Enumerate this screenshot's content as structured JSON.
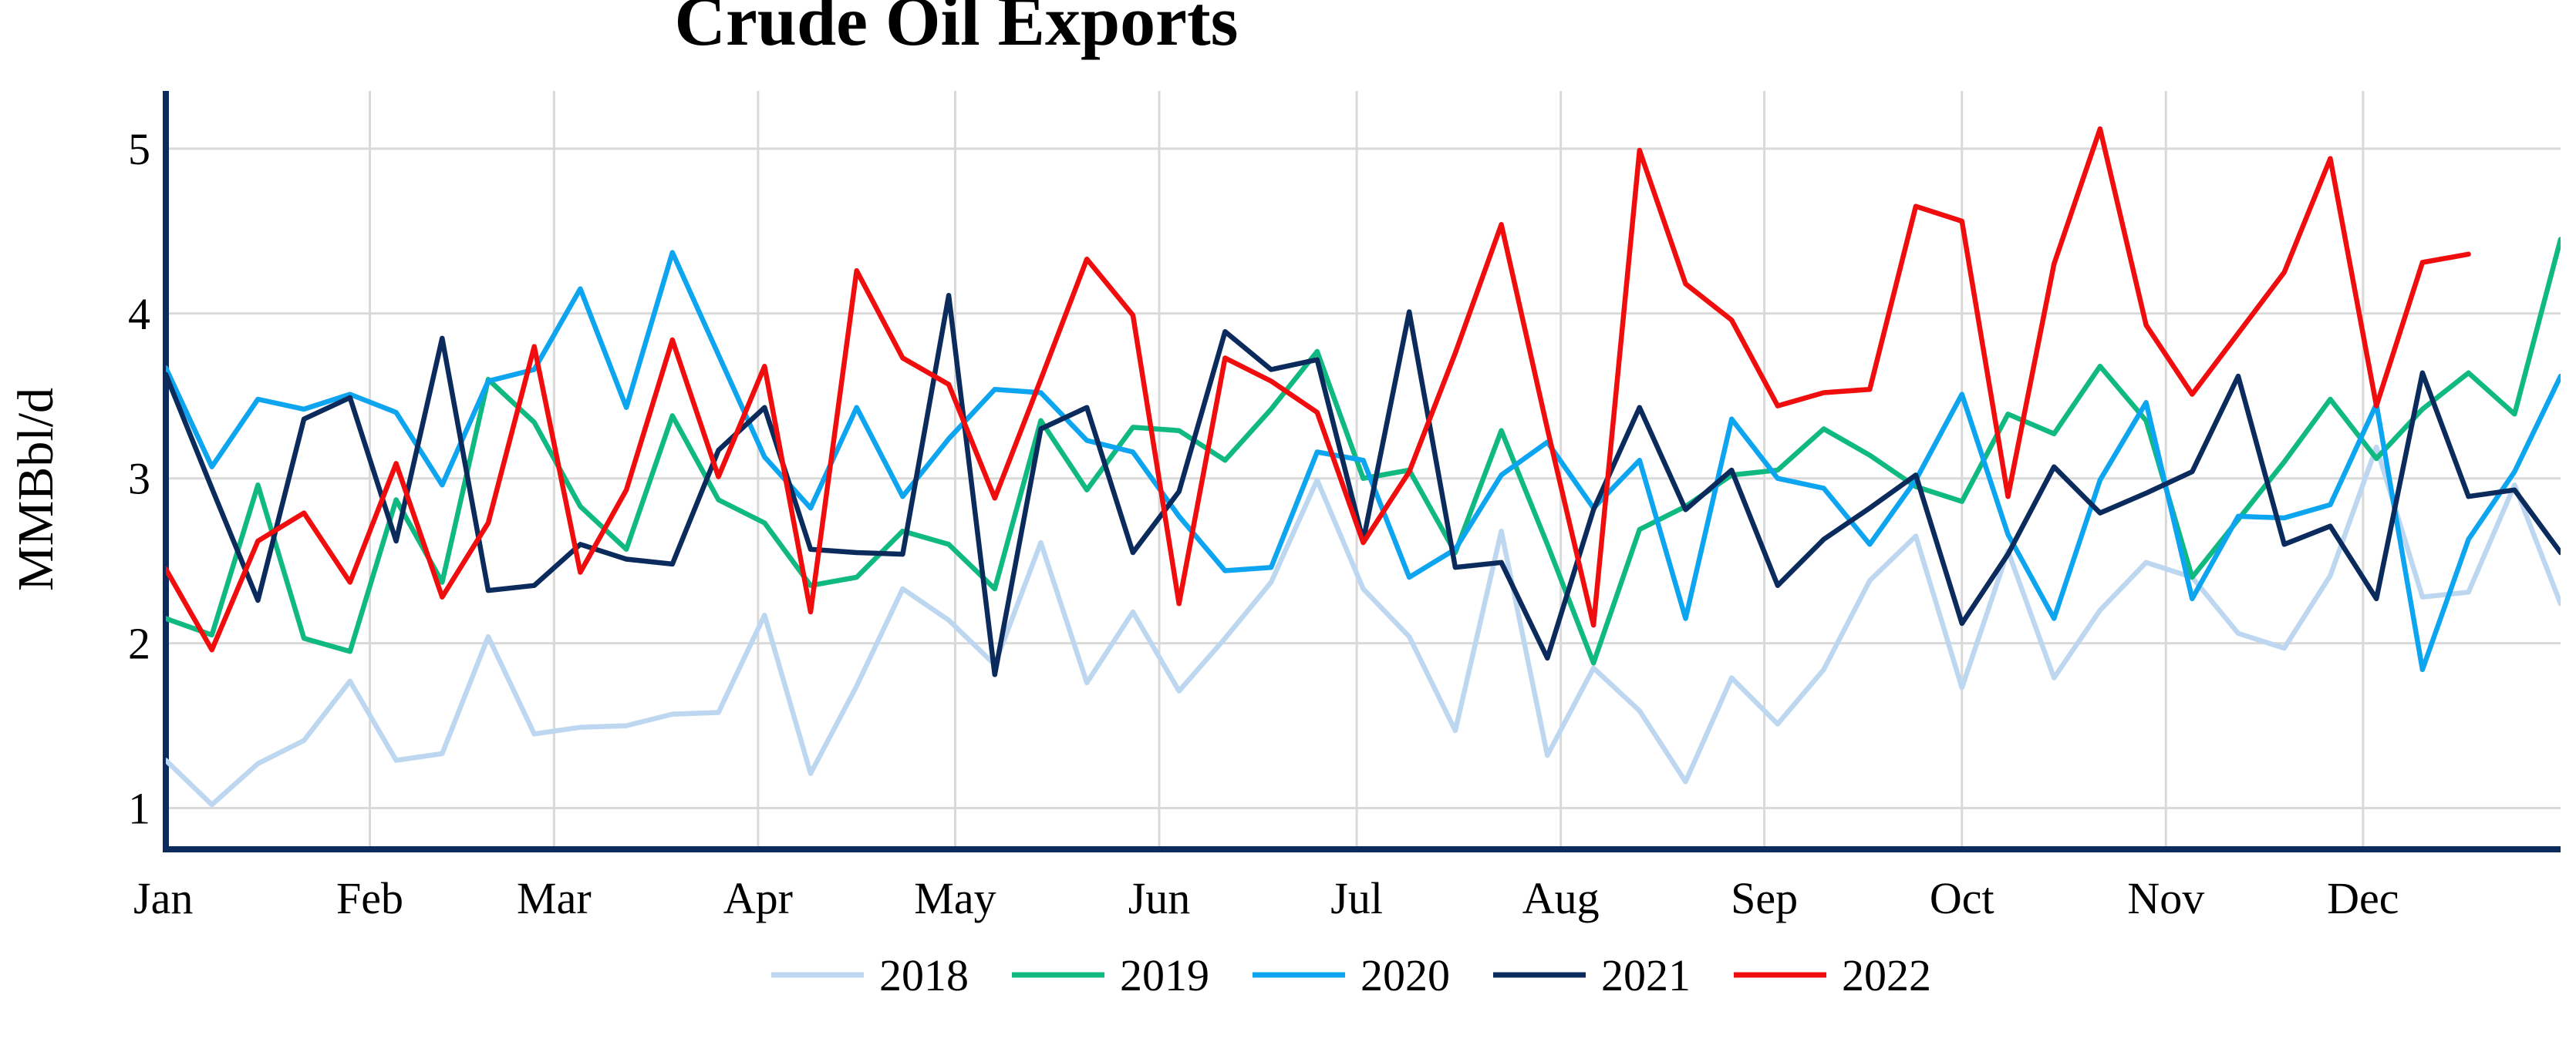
{
  "chart_data": {
    "type": "line",
    "title": "Crude Oil Exports",
    "xlabel": "",
    "ylabel": "MMBbl/d",
    "x_ticks": [
      "Jan",
      "Feb",
      "Mar",
      "Apr",
      "May",
      "Jun",
      "Jul",
      "Aug",
      "Sep",
      "Oct",
      "Nov",
      "Dec"
    ],
    "x_range_weeks": [
      1,
      53
    ],
    "ylim": [
      0.75,
      5.35
    ],
    "y_ticks": [
      1,
      2,
      3,
      4,
      5
    ],
    "grid": true,
    "legend_position": "bottom-center",
    "colors": {
      "2018": "#bdd7f0",
      "2019": "#10b981",
      "2020": "#0ea5f0",
      "2021": "#0b2b5c",
      "2022": "#f00d0d",
      "axis": "#0b2b5c",
      "grid": "#d9d9d9"
    },
    "series": [
      {
        "name": "2018",
        "weeks": [
          1,
          2,
          3,
          4,
          5,
          6,
          7,
          8,
          9,
          10,
          11,
          12,
          13,
          14,
          15,
          16,
          17,
          18,
          19,
          20,
          21,
          22,
          23,
          24,
          25,
          26,
          27,
          28,
          29,
          30,
          31,
          32,
          33,
          34,
          35,
          36,
          37,
          38,
          39,
          40,
          41,
          42,
          43,
          44,
          45,
          46,
          47,
          48,
          49,
          50,
          51,
          52,
          53
        ],
        "values": [
          1.29,
          1.02,
          1.27,
          1.41,
          1.77,
          1.29,
          1.33,
          2.04,
          1.45,
          1.49,
          1.5,
          1.57,
          1.58,
          2.17,
          1.21,
          1.74,
          2.33,
          2.14,
          1.87,
          2.61,
          1.76,
          2.19,
          1.71,
          2.03,
          2.37,
          2.99,
          2.33,
          2.04,
          1.47,
          2.68,
          1.32,
          1.85,
          1.59,
          1.16,
          1.79,
          1.51,
          1.84,
          2.38,
          2.65,
          1.73,
          2.56,
          1.79,
          2.2,
          2.49,
          2.4,
          2.06,
          1.97,
          2.41,
          3.19,
          2.28,
          2.31,
          2.96,
          2.24
        ]
      },
      {
        "name": "2019",
        "weeks": [
          1,
          2,
          3,
          4,
          5,
          6,
          7,
          8,
          9,
          10,
          11,
          12,
          13,
          14,
          15,
          16,
          17,
          18,
          19,
          20,
          21,
          22,
          23,
          24,
          25,
          26,
          27,
          28,
          29,
          30,
          31,
          32,
          33,
          34,
          35,
          36,
          37,
          38,
          39,
          40,
          41,
          42,
          43,
          44,
          45,
          46,
          47,
          48,
          49,
          50,
          51,
          52,
          53
        ],
        "values": [
          2.15,
          2.05,
          2.96,
          2.03,
          1.95,
          2.87,
          2.37,
          3.6,
          3.34,
          2.83,
          2.57,
          3.38,
          2.87,
          2.73,
          2.35,
          2.4,
          2.68,
          2.6,
          2.33,
          3.35,
          2.93,
          3.31,
          3.29,
          3.11,
          3.42,
          3.77,
          3.0,
          3.05,
          2.55,
          3.29,
          2.6,
          1.88,
          2.69,
          2.83,
          3.02,
          3.05,
          3.3,
          3.14,
          2.95,
          2.86,
          3.39,
          3.27,
          3.68,
          3.35,
          2.4,
          2.75,
          3.1,
          3.48,
          3.12,
          3.42,
          3.64,
          3.39,
          4.45
        ]
      },
      {
        "name": "2020",
        "weeks": [
          1,
          2,
          3,
          4,
          5,
          6,
          7,
          8,
          9,
          10,
          11,
          12,
          13,
          14,
          15,
          16,
          17,
          18,
          19,
          20,
          21,
          22,
          23,
          24,
          25,
          26,
          27,
          28,
          29,
          30,
          31,
          32,
          33,
          34,
          35,
          36,
          37,
          38,
          39,
          40,
          41,
          42,
          43,
          44,
          45,
          46,
          47,
          48,
          49,
          50,
          51,
          52,
          53
        ],
        "values": [
          3.67,
          3.07,
          3.48,
          3.42,
          3.51,
          3.4,
          2.96,
          3.59,
          3.66,
          4.15,
          3.43,
          4.37,
          3.75,
          3.13,
          2.82,
          3.43,
          2.89,
          3.24,
          3.54,
          3.52,
          3.23,
          3.16,
          2.77,
          2.44,
          2.46,
          3.16,
          3.11,
          2.4,
          2.57,
          3.02,
          3.22,
          2.82,
          3.11,
          2.15,
          3.36,
          3.0,
          2.94,
          2.6,
          2.99,
          3.51,
          2.66,
          2.15,
          2.99,
          3.46,
          2.27,
          2.77,
          2.76,
          2.84,
          3.45,
          1.84,
          2.63,
          3.04,
          3.62
        ]
      },
      {
        "name": "2021",
        "weeks": [
          1,
          2,
          3,
          4,
          5,
          6,
          7,
          8,
          9,
          10,
          11,
          12,
          13,
          14,
          15,
          16,
          17,
          18,
          19,
          20,
          21,
          22,
          23,
          24,
          25,
          26,
          27,
          28,
          29,
          30,
          31,
          32,
          33,
          34,
          35,
          36,
          37,
          38,
          39,
          40,
          41,
          42,
          43,
          44,
          45,
          46,
          47,
          48,
          49,
          50,
          51,
          52,
          53
        ],
        "values": [
          3.63,
          2.94,
          2.26,
          3.36,
          3.49,
          2.62,
          3.85,
          2.32,
          2.35,
          2.6,
          2.51,
          2.48,
          3.17,
          3.43,
          2.57,
          2.55,
          2.54,
          4.11,
          1.81,
          3.3,
          3.43,
          2.55,
          2.92,
          3.89,
          3.66,
          3.72,
          2.62,
          4.01,
          2.46,
          2.49,
          1.91,
          2.81,
          3.43,
          2.81,
          3.05,
          2.35,
          2.63,
          2.82,
          3.02,
          2.12,
          2.54,
          3.07,
          2.79,
          2.91,
          3.04,
          3.62,
          2.6,
          2.71,
          2.27,
          3.64,
          2.89,
          2.93,
          2.55
        ]
      },
      {
        "name": "2022",
        "weeks": [
          1,
          2,
          3,
          4,
          5,
          6,
          7,
          8,
          9,
          10,
          11,
          12,
          13,
          14,
          15,
          16,
          17,
          18,
          19,
          20,
          21,
          22,
          23,
          24,
          25,
          26,
          27,
          28,
          29,
          30,
          31,
          32,
          33,
          34,
          35,
          36,
          37,
          38,
          39,
          40,
          41,
          42,
          43,
          44,
          45,
          46,
          47,
          48,
          49,
          50,
          51
        ],
        "values": [
          2.45,
          1.96,
          2.62,
          2.79,
          2.37,
          3.09,
          2.28,
          2.73,
          3.8,
          2.43,
          2.93,
          3.84,
          3.01,
          3.68,
          2.19,
          4.26,
          3.73,
          3.57,
          2.88,
          3.6,
          4.33,
          3.99,
          2.24,
          3.73,
          3.59,
          3.4,
          2.61,
          3.04,
          3.76,
          4.54,
          3.3,
          2.11,
          4.99,
          4.18,
          3.96,
          3.44,
          3.52,
          3.54,
          4.65,
          4.56,
          2.89,
          4.3,
          5.12,
          3.93,
          3.51,
          3.88,
          4.25,
          4.94,
          3.44,
          4.31,
          4.36
        ]
      }
    ]
  }
}
